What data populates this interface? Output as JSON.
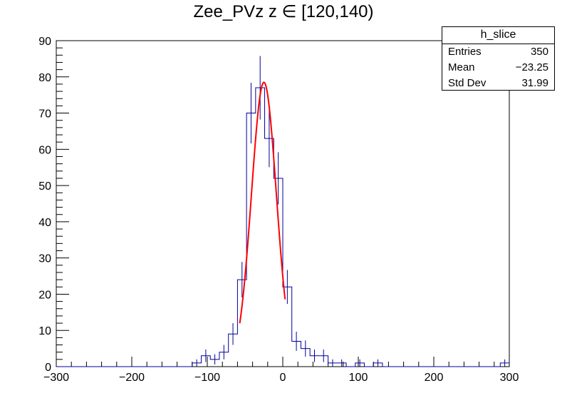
{
  "chart_data": {
    "type": "histogram",
    "title": "Zee_PVz z ∈ [120,140)",
    "xlabel": "",
    "ylabel": "",
    "xlim": [
      -300,
      300
    ],
    "ylim": [
      0,
      90
    ],
    "xticks": [
      -300,
      -200,
      -100,
      0,
      100,
      200,
      300
    ],
    "xtick_labels": [
      "−300",
      "−200",
      "−100",
      "0",
      "100",
      "200",
      "300"
    ],
    "yticks": [
      0,
      10,
      20,
      30,
      40,
      50,
      60,
      70,
      80,
      90
    ],
    "ytick_labels": [
      "0",
      "10",
      "20",
      "30",
      "40",
      "50",
      "60",
      "70",
      "80",
      "90"
    ],
    "bin_width": 12,
    "bins": [
      {
        "center": -114,
        "count": 1
      },
      {
        "center": -102,
        "count": 3
      },
      {
        "center": -90,
        "count": 2
      },
      {
        "center": -78,
        "count": 4
      },
      {
        "center": -66,
        "count": 9
      },
      {
        "center": -54,
        "count": 24
      },
      {
        "center": -42,
        "count": 70
      },
      {
        "center": -30,
        "count": 77
      },
      {
        "center": -18,
        "count": 63
      },
      {
        "center": -6,
        "count": 52
      },
      {
        "center": 6,
        "count": 22
      },
      {
        "center": 18,
        "count": 7
      },
      {
        "center": 30,
        "count": 5
      },
      {
        "center": 42,
        "count": 3
      },
      {
        "center": 54,
        "count": 3
      },
      {
        "center": 66,
        "count": 1
      },
      {
        "center": 78,
        "count": 1
      },
      {
        "center": 102,
        "count": 1
      },
      {
        "center": 126,
        "count": 1
      },
      {
        "center": 294,
        "count": 1
      }
    ],
    "fit": {
      "type": "gaussian",
      "constant": 78.5,
      "mean": -25,
      "sigma": 16.5,
      "range": [
        -57,
        3
      ],
      "color": "#ff0000"
    },
    "hist_color": "#000099",
    "grid": false,
    "stats_box": {
      "title": "h_slice",
      "rows": [
        {
          "label": "Entries",
          "value": "350"
        },
        {
          "label": "Mean",
          "value": "−23.25"
        },
        {
          "label": "Std Dev",
          "value": "31.99"
        }
      ],
      "placement": "top-right"
    }
  }
}
